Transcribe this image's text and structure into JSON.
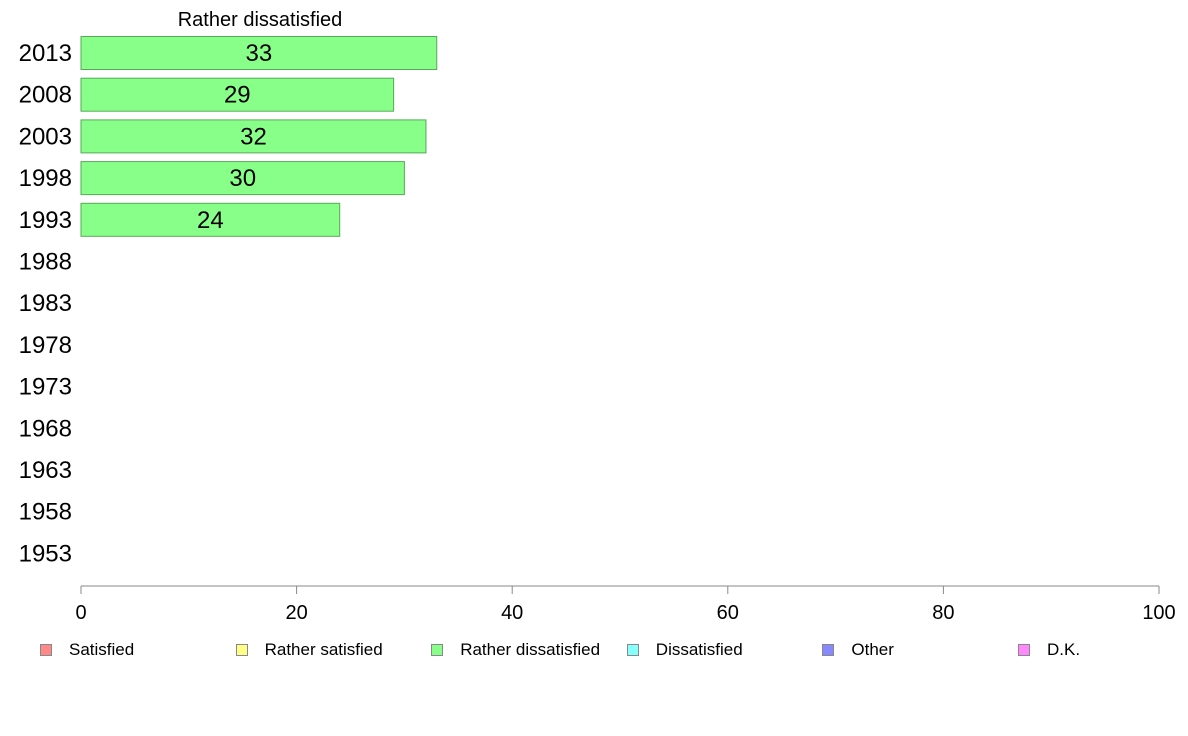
{
  "chart_data": {
    "type": "bar",
    "orientation": "horizontal",
    "title": "Rather dissatisfied",
    "xlabel": "",
    "ylabel": "",
    "categories": [
      "2013",
      "2008",
      "2003",
      "1998",
      "1993",
      "1988",
      "1983",
      "1978",
      "1973",
      "1968",
      "1963",
      "1958",
      "1953"
    ],
    "series": [
      {
        "name": "Rather dissatisfied",
        "color": "#88ff88",
        "values": [
          33,
          29,
          32,
          30,
          24,
          null,
          null,
          null,
          null,
          null,
          null,
          null,
          null
        ]
      }
    ],
    "xlim": [
      0,
      100
    ],
    "xticks": [
      0,
      20,
      40,
      60,
      80,
      100
    ],
    "grid": false,
    "legend_position": "bottom"
  },
  "legend": {
    "items": [
      {
        "label": "Satisfied",
        "color": "#ff8888"
      },
      {
        "label": "Rather satisfied",
        "color": "#ffff88"
      },
      {
        "label": "Rather dissatisfied",
        "color": "#88ff88"
      },
      {
        "label": "Dissatisfied",
        "color": "#88ffff"
      },
      {
        "label": "Other",
        "color": "#8888ff"
      },
      {
        "label": "D.K.",
        "color": "#ff88ff"
      }
    ]
  }
}
